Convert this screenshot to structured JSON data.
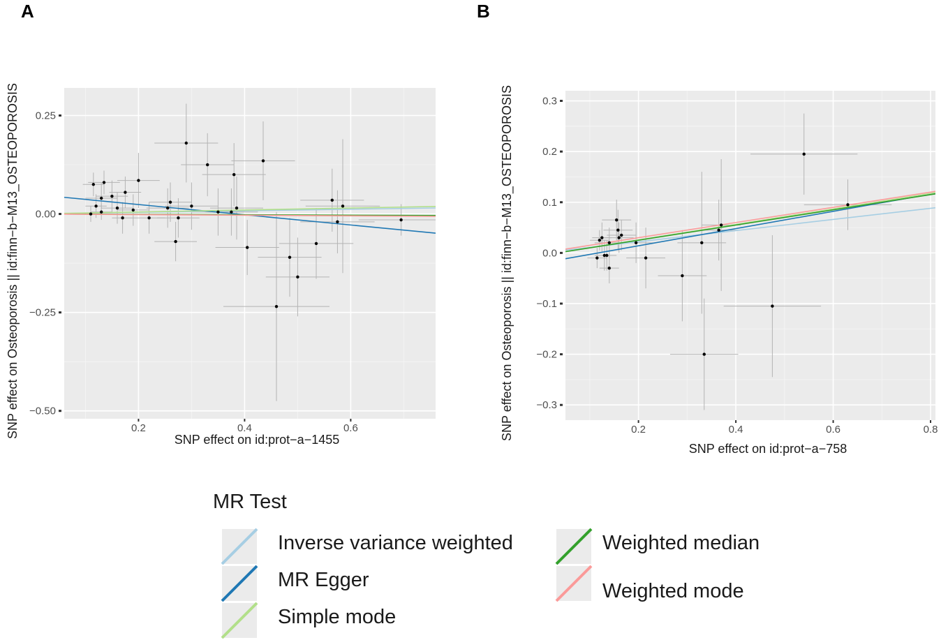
{
  "legend": {
    "title": "MR Test",
    "entries": [
      {
        "name": "Inverse variance weighted",
        "color": "#a6cee3"
      },
      {
        "name": "MR Egger",
        "color": "#1f78b4"
      },
      {
        "name": "Simple mode",
        "color": "#b2df8a"
      },
      {
        "name": "Weighted median",
        "color": "#33a02c"
      },
      {
        "name": "Weighted mode",
        "color": "#fb9a99"
      }
    ]
  },
  "chart_data": [
    {
      "panel": "A",
      "type": "scatter",
      "xlabel": "SNP effect on id:prot−a−1455",
      "ylabel": "SNP effect on Osteoporosis || id:finn−b−M13_OSTEOPOROSIS",
      "xlim": [
        0.06,
        0.76
      ],
      "ylim": [
        -0.52,
        0.32
      ],
      "xticks": [
        0.2,
        0.4,
        0.6
      ],
      "xtick_labels": [
        "0.2",
        "0.4",
        "0.6"
      ],
      "yticks": [
        0.25,
        0.0,
        -0.25,
        -0.5
      ],
      "ytick_labels": [
        "0.25",
        "0.00",
        "−0.25",
        "−0.50"
      ],
      "points": [
        {
          "x": 0.11,
          "y": 0.0,
          "se_x": 0.02,
          "se_y": 0.02
        },
        {
          "x": 0.115,
          "y": 0.075,
          "se_x": 0.02,
          "se_y": 0.03
        },
        {
          "x": 0.12,
          "y": 0.02,
          "se_x": 0.02,
          "se_y": 0.03
        },
        {
          "x": 0.13,
          "y": 0.04,
          "se_x": 0.03,
          "se_y": 0.04
        },
        {
          "x": 0.135,
          "y": 0.08,
          "se_x": 0.03,
          "se_y": 0.03
        },
        {
          "x": 0.13,
          "y": 0.005,
          "se_x": 0.02,
          "se_y": 0.02
        },
        {
          "x": 0.15,
          "y": 0.045,
          "se_x": 0.03,
          "se_y": 0.04
        },
        {
          "x": 0.16,
          "y": 0.015,
          "se_x": 0.03,
          "se_y": 0.04
        },
        {
          "x": 0.17,
          "y": -0.01,
          "se_x": 0.02,
          "se_y": 0.04
        },
        {
          "x": 0.175,
          "y": 0.055,
          "se_x": 0.03,
          "se_y": 0.04
        },
        {
          "x": 0.19,
          "y": 0.01,
          "se_x": 0.03,
          "se_y": 0.04
        },
        {
          "x": 0.2,
          "y": 0.085,
          "se_x": 0.04,
          "se_y": 0.07
        },
        {
          "x": 0.22,
          "y": -0.01,
          "se_x": 0.03,
          "se_y": 0.04
        },
        {
          "x": 0.255,
          "y": 0.015,
          "se_x": 0.04,
          "se_y": 0.05
        },
        {
          "x": 0.26,
          "y": 0.03,
          "se_x": 0.04,
          "se_y": 0.05
        },
        {
          "x": 0.27,
          "y": -0.07,
          "se_x": 0.04,
          "se_y": 0.05
        },
        {
          "x": 0.275,
          "y": -0.01,
          "se_x": 0.04,
          "se_y": 0.05
        },
        {
          "x": 0.29,
          "y": 0.18,
          "se_x": 0.06,
          "se_y": 0.1
        },
        {
          "x": 0.3,
          "y": 0.02,
          "se_x": 0.05,
          "se_y": 0.06
        },
        {
          "x": 0.33,
          "y": 0.125,
          "se_x": 0.05,
          "se_y": 0.08
        },
        {
          "x": 0.35,
          "y": 0.005,
          "se_x": 0.05,
          "se_y": 0.06
        },
        {
          "x": 0.375,
          "y": 0.005,
          "se_x": 0.05,
          "se_y": 0.06
        },
        {
          "x": 0.38,
          "y": 0.1,
          "se_x": 0.06,
          "se_y": 0.08
        },
        {
          "x": 0.385,
          "y": 0.015,
          "se_x": 0.05,
          "se_y": 0.08
        },
        {
          "x": 0.405,
          "y": -0.085,
          "se_x": 0.06,
          "se_y": 0.07
        },
        {
          "x": 0.435,
          "y": 0.135,
          "se_x": 0.06,
          "se_y": 0.1
        },
        {
          "x": 0.46,
          "y": -0.235,
          "se_x": 0.1,
          "se_y": 0.24
        },
        {
          "x": 0.485,
          "y": -0.11,
          "se_x": 0.06,
          "se_y": 0.1
        },
        {
          "x": 0.5,
          "y": -0.16,
          "se_x": 0.06,
          "se_y": 0.1
        },
        {
          "x": 0.535,
          "y": -0.075,
          "se_x": 0.07,
          "se_y": 0.09
        },
        {
          "x": 0.565,
          "y": 0.035,
          "se_x": 0.06,
          "se_y": 0.08
        },
        {
          "x": 0.575,
          "y": -0.02,
          "se_x": 0.07,
          "se_y": 0.08
        },
        {
          "x": 0.585,
          "y": 0.02,
          "se_x": 0.07,
          "se_y": 0.17
        },
        {
          "x": 0.695,
          "y": -0.015,
          "se_x": 0.08,
          "se_y": 0.04
        }
      ],
      "lines": [
        {
          "method": "Inverse variance weighted",
          "intercept": 0.0,
          "slope": 0.02
        },
        {
          "method": "MR Egger",
          "intercept": 0.05,
          "slope": -0.13
        },
        {
          "method": "Simple mode",
          "intercept": 0.0,
          "slope": 0.025
        },
        {
          "method": "Weighted median",
          "intercept": 0.0,
          "slope": -0.005
        },
        {
          "method": "Weighted mode",
          "intercept": 0.0,
          "slope": -0.008
        }
      ]
    },
    {
      "panel": "B",
      "type": "scatter",
      "xlabel": "SNP effect on id:prot−a−758",
      "ylabel": "SNP effect on Osteoporosis || id:finn−b−M13_OSTEOPOROSIS",
      "xlim": [
        0.05,
        0.81
      ],
      "ylim": [
        -0.33,
        0.32
      ],
      "xticks": [
        0.2,
        0.4,
        0.6,
        0.8
      ],
      "xtick_labels": [
        "0.2",
        "0.4",
        "0.6",
        "0.8"
      ],
      "yticks": [
        0.3,
        0.2,
        0.1,
        0.0,
        -0.1,
        -0.2,
        -0.3
      ],
      "ytick_labels": [
        "0.3",
        "0.2",
        "0.1",
        "0.0",
        "−0.1",
        "−0.2",
        "−0.3"
      ],
      "points": [
        {
          "x": 0.115,
          "y": -0.01,
          "se_x": 0.02,
          "se_y": 0.02
        },
        {
          "x": 0.12,
          "y": 0.025,
          "se_x": 0.02,
          "se_y": 0.02
        },
        {
          "x": 0.125,
          "y": 0.03,
          "se_x": 0.02,
          "se_y": 0.03
        },
        {
          "x": 0.13,
          "y": -0.005,
          "se_x": 0.02,
          "se_y": 0.03
        },
        {
          "x": 0.135,
          "y": -0.005,
          "se_x": 0.02,
          "se_y": 0.03
        },
        {
          "x": 0.14,
          "y": 0.02,
          "se_x": 0.03,
          "se_y": 0.03
        },
        {
          "x": 0.14,
          "y": -0.03,
          "se_x": 0.02,
          "se_y": 0.03
        },
        {
          "x": 0.155,
          "y": 0.065,
          "se_x": 0.03,
          "se_y": 0.04
        },
        {
          "x": 0.158,
          "y": 0.045,
          "se_x": 0.03,
          "se_y": 0.04
        },
        {
          "x": 0.16,
          "y": 0.03,
          "se_x": 0.03,
          "se_y": 0.03
        },
        {
          "x": 0.165,
          "y": 0.035,
          "se_x": 0.03,
          "se_y": 0.03
        },
        {
          "x": 0.195,
          "y": 0.02,
          "se_x": 0.04,
          "se_y": 0.04
        },
        {
          "x": 0.215,
          "y": -0.01,
          "se_x": 0.04,
          "se_y": 0.06
        },
        {
          "x": 0.29,
          "y": -0.045,
          "se_x": 0.05,
          "se_y": 0.09
        },
        {
          "x": 0.33,
          "y": 0.02,
          "se_x": 0.05,
          "se_y": 0.14
        },
        {
          "x": 0.335,
          "y": -0.2,
          "se_x": 0.07,
          "se_y": 0.11
        },
        {
          "x": 0.365,
          "y": 0.045,
          "se_x": 0.04,
          "se_y": 0.06
        },
        {
          "x": 0.37,
          "y": 0.055,
          "se_x": 0.04,
          "se_y": 0.13
        },
        {
          "x": 0.475,
          "y": -0.105,
          "se_x": 0.1,
          "se_y": 0.14
        },
        {
          "x": 0.54,
          "y": 0.195,
          "se_x": 0.11,
          "se_y": 0.08
        },
        {
          "x": 0.63,
          "y": 0.095,
          "se_x": 0.09,
          "se_y": 0.05
        }
      ],
      "lines": [
        {
          "method": "Inverse variance weighted",
          "intercept": 0.0,
          "slope": 0.11
        },
        {
          "method": "MR Egger",
          "intercept": -0.02,
          "slope": 0.17
        },
        {
          "method": "Simple mode",
          "intercept": -0.005,
          "slope": 0.153
        },
        {
          "method": "Weighted median",
          "intercept": -0.005,
          "slope": 0.15
        },
        {
          "method": "Weighted mode",
          "intercept": 0.0,
          "slope": 0.15
        }
      ]
    }
  ]
}
